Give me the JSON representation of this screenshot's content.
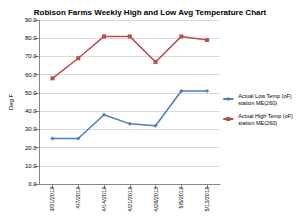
{
  "chart_data": {
    "type": "line",
    "title": "Robison Farms Weekly High and Low Avg Temperature Chart",
    "y_label": "Deg F",
    "categories": [
      "3/31/2013",
      "4/7/2013",
      "4/14/2013",
      "4/21/2013",
      "4/28/2013",
      "5/5/2013",
      "5/12/2013"
    ],
    "series": [
      {
        "name": "Actual Low Temp (oF) station ME(260)",
        "color": "#4a7ebb",
        "marker": "diamond",
        "values": [
          25,
          25,
          38,
          33,
          32,
          51,
          51
        ]
      },
      {
        "name": "Actual High Temp (oF) station ME(260)",
        "color": "#be4b48",
        "marker": "square",
        "values": [
          58,
          69,
          81,
          81,
          67,
          81,
          79
        ]
      }
    ],
    "ylim": [
      0,
      90
    ],
    "yticks": [
      {
        "value": 0,
        "label": "0.0"
      },
      {
        "value": 10,
        "label": "10.0"
      },
      {
        "value": 20,
        "label": "20.0"
      },
      {
        "value": 30,
        "label": "30.0"
      },
      {
        "value": 40,
        "label": "40.0"
      },
      {
        "value": 50,
        "label": "50.0"
      },
      {
        "value": 60,
        "label": "60.0"
      },
      {
        "value": 70,
        "label": "70.0"
      },
      {
        "value": 80,
        "label": "80.0"
      },
      {
        "value": 90,
        "label": "90.0"
      }
    ],
    "grid": true,
    "legend": "right"
  }
}
